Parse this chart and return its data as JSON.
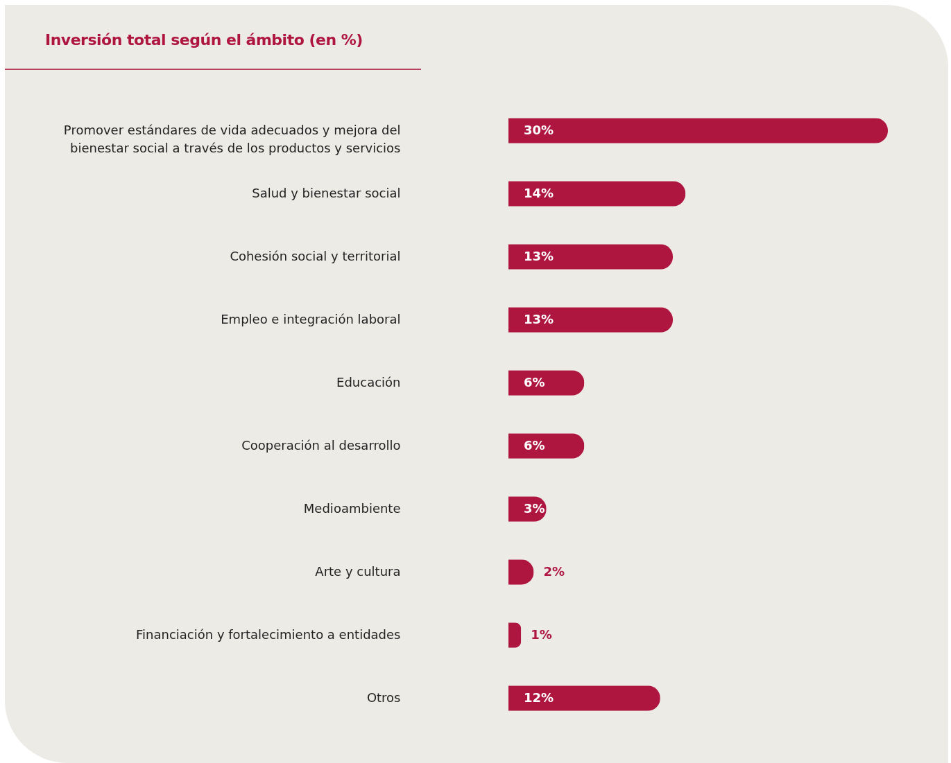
{
  "chart_data": {
    "type": "bar",
    "orientation": "horizontal",
    "title": "Inversión total según el ámbito (en %)",
    "categories": [
      "Promover estándares de vida adecuados y mejora del bienestar social a través de los productos y servicios",
      "Salud y bienestar social",
      "Cohesión social y territorial",
      "Empleo e integración laboral",
      "Educación",
      "Cooperación al desarrollo",
      "Medioambiente",
      "Arte y cultura",
      "Financiación y fortalecimiento a entidades",
      "Otros"
    ],
    "values": [
      30,
      14,
      13,
      13,
      6,
      6,
      3,
      2,
      1,
      12
    ],
    "value_labels": [
      "30%",
      "14%",
      "13%",
      "13%",
      "6%",
      "6%",
      "3%",
      "2%",
      "1%",
      "12%"
    ],
    "color": "#ae1640"
  }
}
